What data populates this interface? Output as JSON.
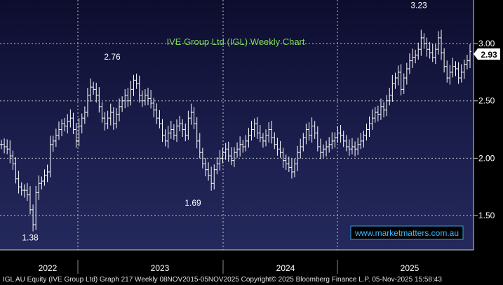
{
  "chart_data": {
    "type": "ohlc",
    "title": "IVE Group Ltd (IGL) Weekly Chart",
    "source_line": "IGL AU Equity (IVE Group Ltd) Graph 217 Weekly 08NOV2015-05NOV2025  Copyright© 2025 Bloomberg Finance L.P.  05-Nov-2025 15:58:43",
    "watermark": "www.marketmatters.com.au",
    "y_ticks": [
      "3.00",
      "2.50",
      "2.00",
      "1.50"
    ],
    "x_ticks": [
      "2022",
      "2023",
      "2024",
      "2025"
    ],
    "ylim": [
      1.2,
      3.38
    ],
    "grid": true,
    "last_price": "2.93",
    "annotations": [
      {
        "label": "1.38",
        "value": 1.38
      },
      {
        "label": "2.76",
        "value": 2.76
      },
      {
        "label": "1.69",
        "value": 1.69
      },
      {
        "label": "3.23",
        "value": 3.23
      }
    ],
    "closes": [
      2.12,
      2.1,
      2.08,
      2.02,
      1.95,
      1.82,
      1.75,
      1.72,
      1.72,
      1.68,
      1.55,
      1.42,
      1.7,
      1.78,
      1.8,
      1.85,
      1.88,
      2.12,
      2.15,
      2.2,
      2.25,
      2.3,
      2.28,
      2.32,
      2.35,
      2.25,
      2.15,
      2.28,
      2.35,
      2.4,
      2.55,
      2.62,
      2.6,
      2.55,
      2.45,
      2.35,
      2.3,
      2.35,
      2.4,
      2.3,
      2.38,
      2.45,
      2.5,
      2.55,
      2.5,
      2.6,
      2.68,
      2.65,
      2.55,
      2.5,
      2.55,
      2.52,
      2.48,
      2.42,
      2.35,
      2.3,
      2.2,
      2.15,
      2.22,
      2.25,
      2.2,
      2.28,
      2.3,
      2.25,
      2.2,
      2.35,
      2.4,
      2.3,
      2.15,
      2.05,
      1.95,
      1.9,
      1.85,
      1.78,
      1.9,
      1.95,
      2.0,
      2.05,
      2.08,
      2.02,
      1.98,
      2.05,
      2.08,
      2.12,
      2.1,
      2.15,
      2.2,
      2.25,
      2.3,
      2.22,
      2.18,
      2.15,
      2.2,
      2.25,
      2.18,
      2.12,
      2.08,
      2.05,
      1.98,
      1.95,
      1.92,
      1.88,
      1.95,
      2.05,
      2.1,
      2.18,
      2.25,
      2.2,
      2.28,
      2.22,
      2.1,
      2.05,
      2.08,
      2.1,
      2.12,
      2.15,
      2.18,
      2.22,
      2.2,
      2.15,
      2.1,
      2.08,
      2.1,
      2.08,
      2.12,
      2.15,
      2.2,
      2.25,
      2.3,
      2.35,
      2.4,
      2.38,
      2.45,
      2.42,
      2.5,
      2.55,
      2.65,
      2.7,
      2.75,
      2.6,
      2.7,
      2.78,
      2.85,
      2.88,
      2.9,
      2.95,
      3.05,
      3.0,
      2.95,
      2.92,
      2.88,
      2.95,
      3.05,
      2.92,
      2.8,
      2.7,
      2.75,
      2.8,
      2.78,
      2.7,
      2.75,
      2.82,
      2.85,
      2.93
    ]
  }
}
